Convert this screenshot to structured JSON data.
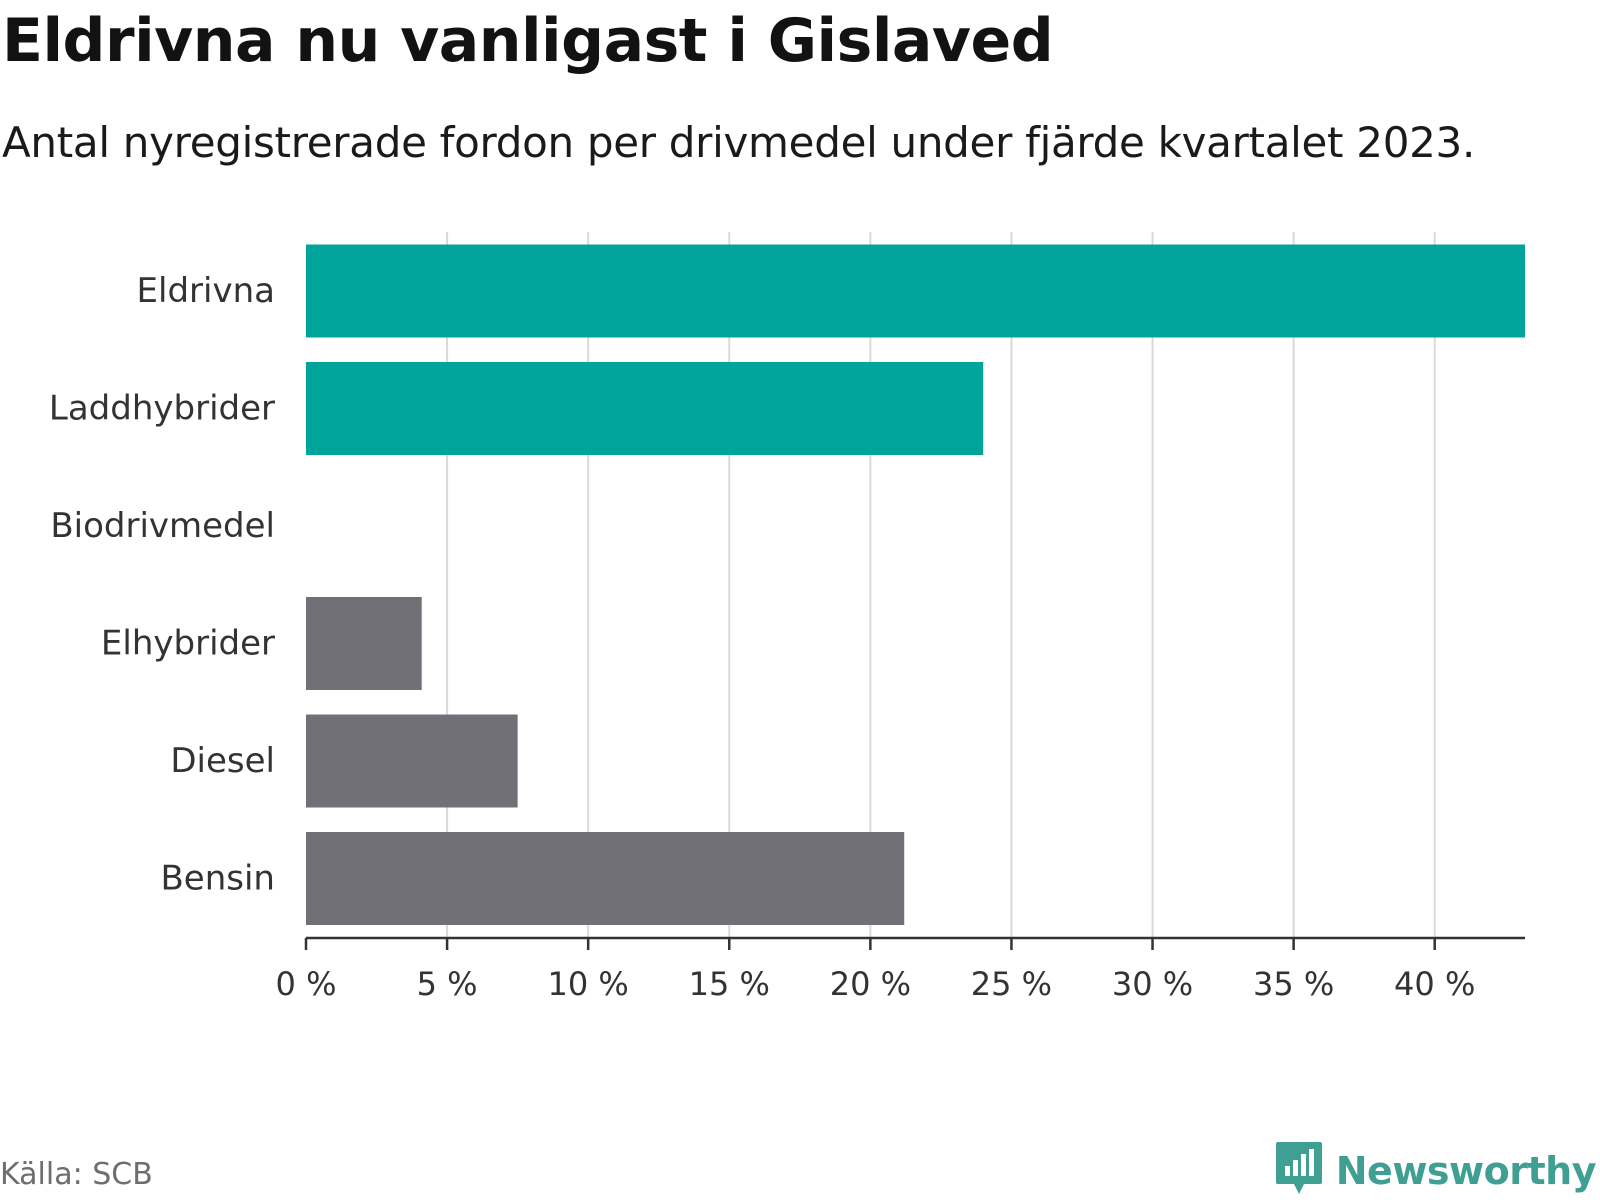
{
  "title": "Eldrivna nu vanligast i Gislaved",
  "subtitle": "Antal nyregistrerade fordon per drivmedel under fjärde kvartalet 2023.",
  "source": "Källa: SCB",
  "brand": "Newsworthy",
  "colors": {
    "highlight": "#00a49a",
    "neutral": "#707076",
    "grid": "#d9d9d9",
    "axis": "#333333",
    "brand": "#3f9f92"
  },
  "chart_data": {
    "type": "bar",
    "orientation": "horizontal",
    "title": "Eldrivna nu vanligast i Gislaved",
    "subtitle": "Antal nyregistrerade fordon per drivmedel under fjärde kvartalet 2023.",
    "xlabel": "",
    "ylabel": "",
    "categories": [
      "Eldrivna",
      "Laddhybrider",
      "Biodrivmedel",
      "Elhybrider",
      "Diesel",
      "Bensin"
    ],
    "values": [
      43.2,
      24.0,
      0,
      4.1,
      7.5,
      21.2
    ],
    "groups": [
      "highlight",
      "highlight",
      "highlight",
      "neutral",
      "neutral",
      "neutral"
    ],
    "xlim": [
      0,
      43.2
    ],
    "ticks": [
      0,
      5,
      10,
      15,
      20,
      25,
      30,
      35,
      40
    ],
    "tick_labels": [
      "0 %",
      "5 %",
      "10 %",
      "15 %",
      "20 %",
      "25 %",
      "30 %",
      "35 %",
      "40 %"
    ],
    "grid": true,
    "legend": "none"
  }
}
